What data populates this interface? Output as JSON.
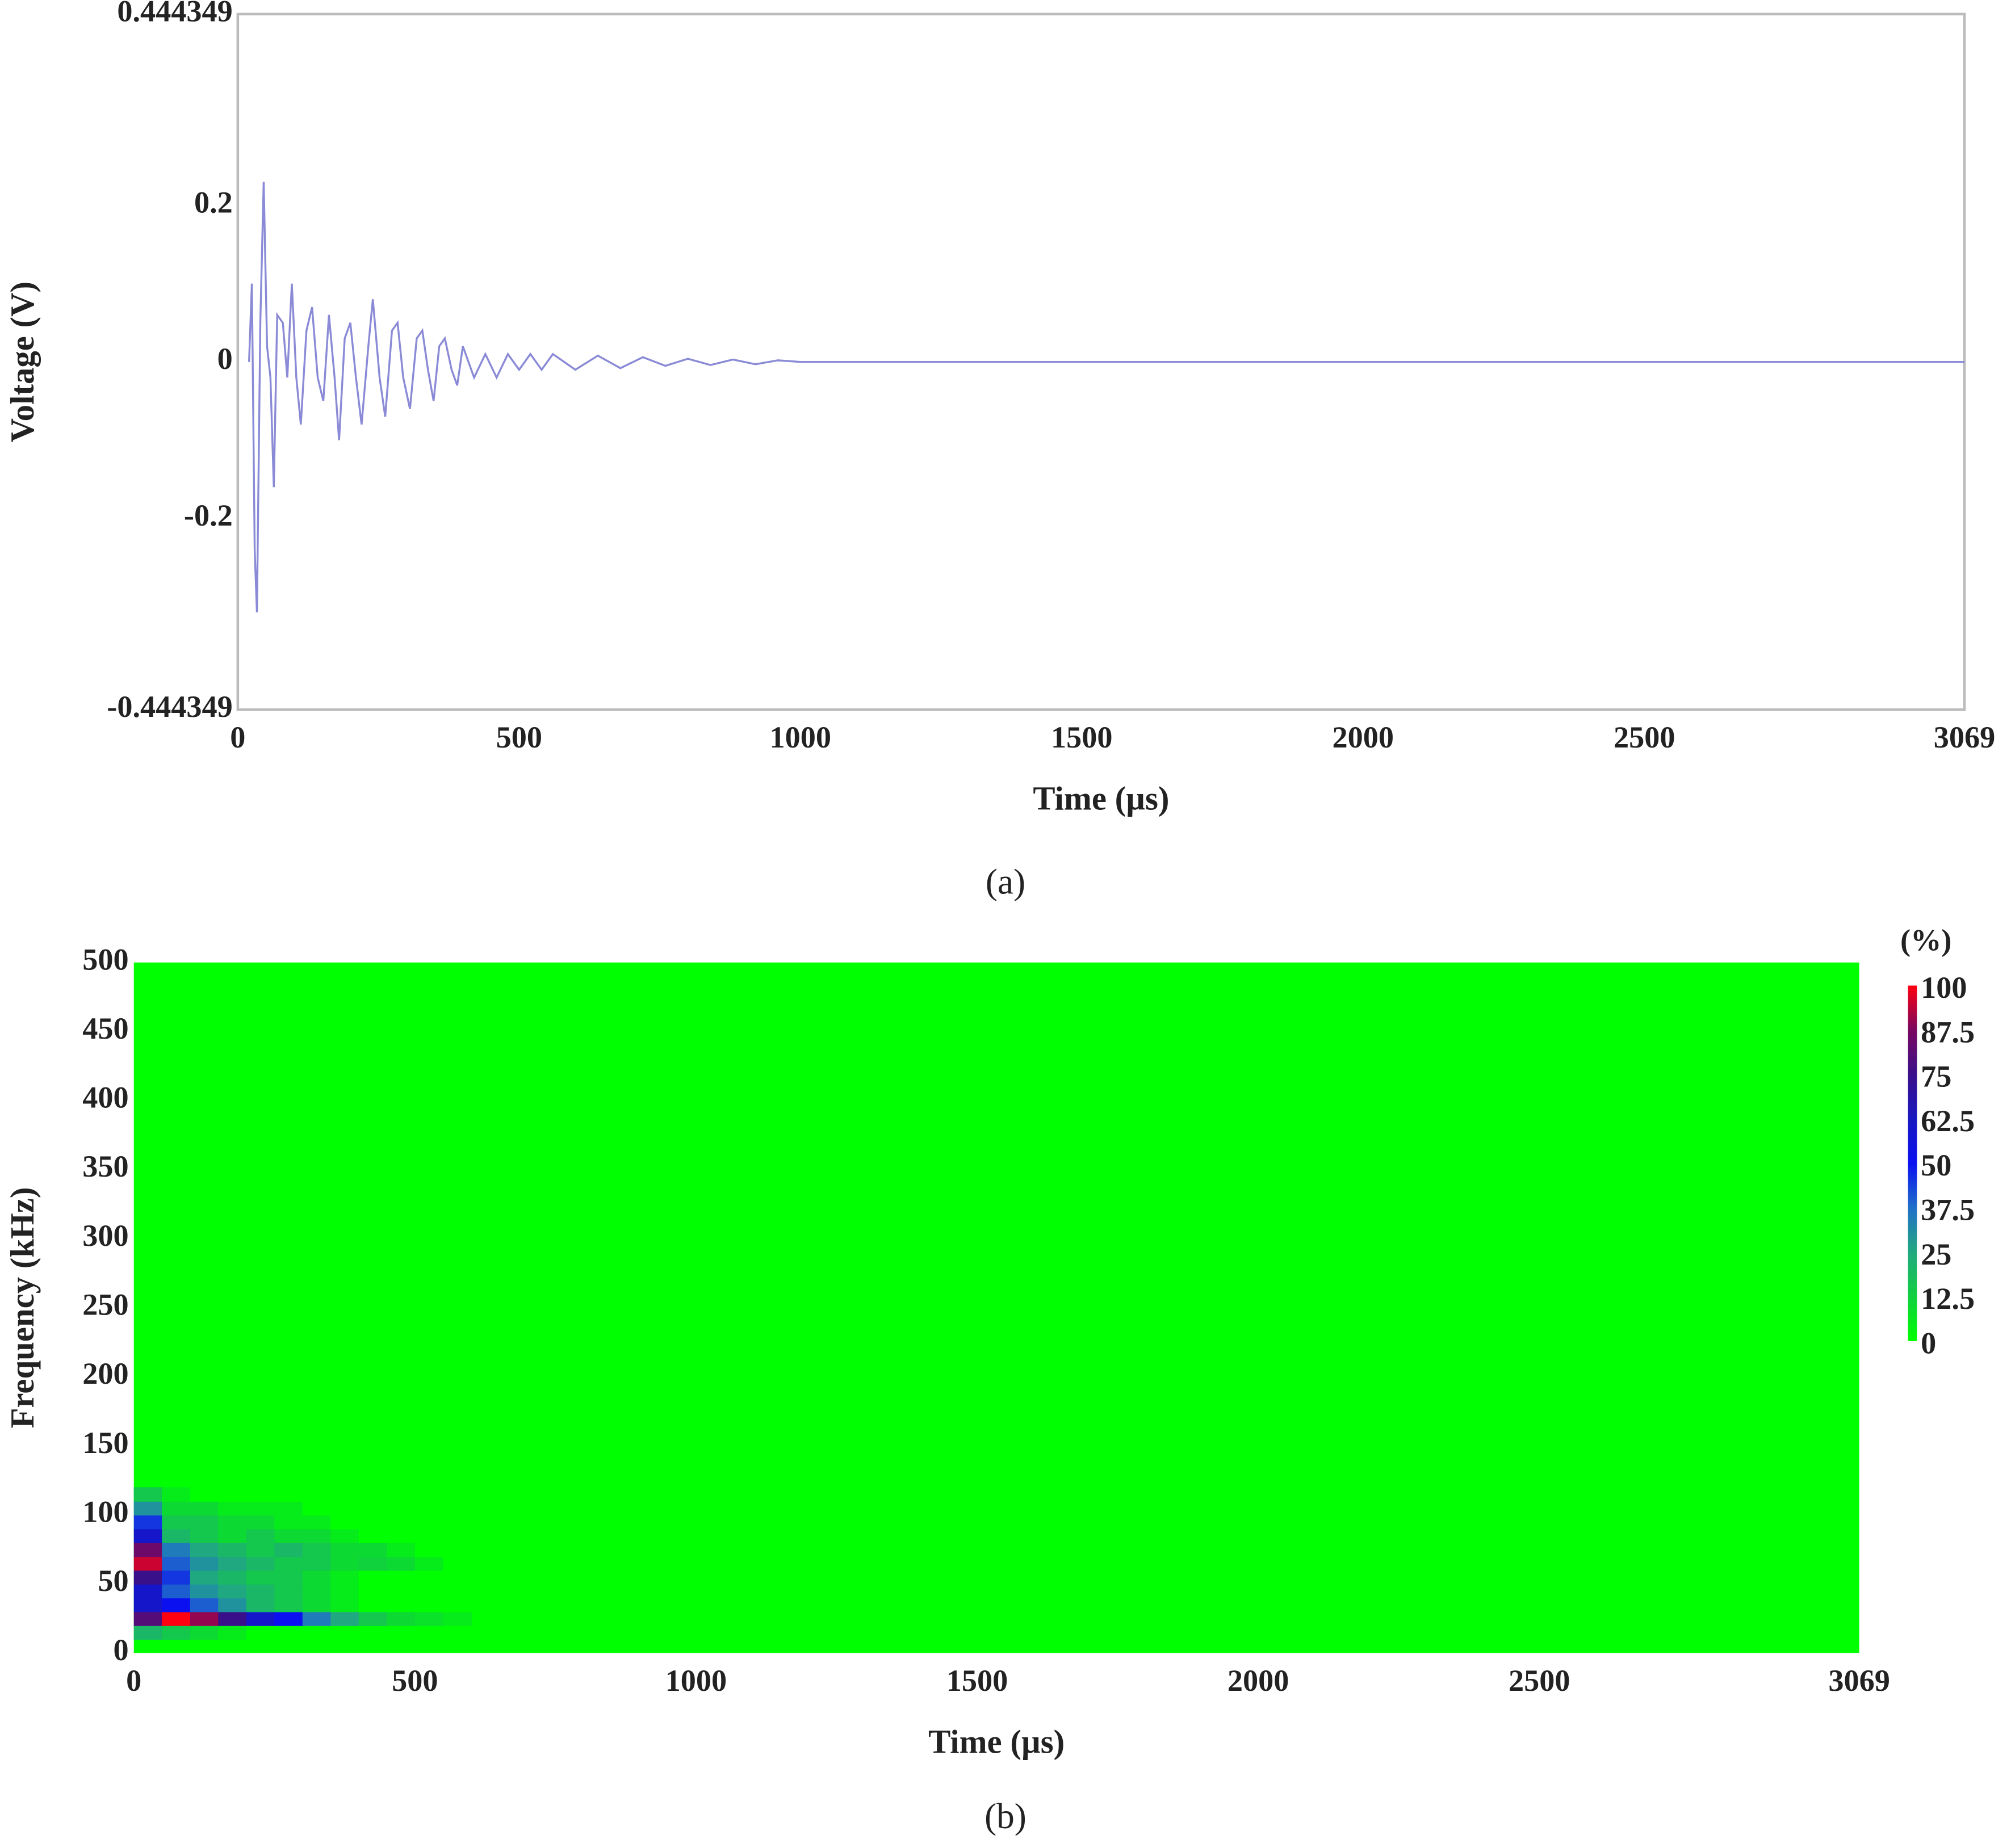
{
  "chart_data": [
    {
      "type": "line",
      "caption": "(a)",
      "x_label": "Time (µs)",
      "y_label": "Voltage (V)",
      "color": "#8a8ad6",
      "x": [
        20,
        25,
        30,
        34,
        40,
        46,
        52,
        58,
        64,
        70,
        80,
        88,
        96,
        104,
        112,
        122,
        132,
        142,
        152,
        162,
        172,
        180,
        190,
        200,
        210,
        220,
        232,
        240,
        252,
        262,
        274,
        284,
        294,
        306,
        318,
        328,
        338,
        348,
        358,
        368,
        380,
        390,
        400,
        420,
        440,
        460,
        480,
        500,
        520,
        540,
        560,
        600,
        640,
        680,
        720,
        760,
        800,
        840,
        880,
        920,
        960,
        1000,
        3069
      ],
      "values": [
        0,
        0.1,
        -0.24,
        -0.32,
        0.05,
        0.23,
        0.02,
        -0.02,
        -0.16,
        0.06,
        0.05,
        -0.02,
        0.1,
        -0.02,
        -0.08,
        0.04,
        0.07,
        -0.02,
        -0.05,
        0.06,
        -0.02,
        -0.1,
        0.03,
        0.05,
        -0.02,
        -0.08,
        0.02,
        0.08,
        -0.02,
        -0.07,
        0.04,
        0.05,
        -0.02,
        -0.06,
        0.03,
        0.04,
        -0.01,
        -0.05,
        0.02,
        0.03,
        -0.01,
        -0.03,
        0.02,
        -0.02,
        0.01,
        -0.02,
        0.01,
        -0.01,
        0.01,
        -0.01,
        0.01,
        -0.01,
        0.008,
        -0.008,
        0.006,
        -0.005,
        0.004,
        -0.004,
        0.003,
        -0.003,
        0.002,
        0,
        0
      ],
      "xlim": [
        0,
        3069
      ],
      "xticks": [
        0,
        500,
        1000,
        1500,
        2000,
        2500,
        3069
      ],
      "ylim": [
        -0.444349,
        0.444349
      ],
      "yticks": [
        -0.444349,
        -0.2,
        0,
        0.2,
        0.444349
      ]
    },
    {
      "type": "heatmap",
      "caption": "(b)",
      "x_label": "Time (µs)",
      "y_label": "Frequency (kHz)",
      "x": [
        0,
        50,
        100,
        150,
        200,
        250,
        300,
        350,
        400,
        450,
        500,
        550,
        600
      ],
      "y": [
        10,
        20,
        30,
        40,
        50,
        60,
        70,
        80,
        90,
        100,
        110,
        120
      ],
      "z": [
        [
          20,
          15,
          10,
          5,
          0,
          0,
          0,
          0,
          0,
          0,
          0,
          0
        ],
        [
          80,
          100,
          90,
          75,
          60,
          50,
          35,
          25,
          15,
          10,
          8,
          5
        ],
        [
          60,
          50,
          40,
          30,
          20,
          15,
          10,
          5,
          0,
          0,
          0,
          0
        ],
        [
          60,
          40,
          30,
          25,
          20,
          15,
          10,
          5,
          0,
          0,
          0,
          0
        ],
        [
          75,
          45,
          25,
          20,
          15,
          15,
          10,
          5,
          0,
          0,
          0,
          0
        ],
        [
          95,
          40,
          30,
          25,
          20,
          15,
          15,
          10,
          12,
          10,
          5,
          0
        ],
        [
          85,
          35,
          25,
          20,
          15,
          20,
          15,
          10,
          10,
          5,
          0,
          0
        ],
        [
          60,
          20,
          15,
          10,
          15,
          10,
          10,
          5,
          0,
          0,
          0,
          0
        ],
        [
          45,
          15,
          15,
          10,
          10,
          5,
          5,
          0,
          0,
          0,
          0,
          0
        ],
        [
          30,
          10,
          10,
          5,
          5,
          5,
          0,
          0,
          0,
          0,
          0,
          0
        ],
        [
          15,
          5,
          0,
          0,
          0,
          0,
          0,
          0,
          0,
          0,
          0,
          0
        ]
      ],
      "xlim": [
        0,
        3069
      ],
      "xticks": [
        0,
        500,
        1000,
        1500,
        2000,
        2500,
        3069
      ],
      "ylim": [
        0,
        500
      ],
      "yticks": [
        0,
        50,
        100,
        150,
        200,
        250,
        300,
        350,
        400,
        450,
        500
      ],
      "colorbar": {
        "title": "(%)",
        "lim": [
          0,
          100
        ],
        "ticks": [
          0,
          12.5,
          25,
          37.5,
          50,
          62.5,
          75,
          87.5,
          100
        ],
        "colors": [
          "#00ff00",
          "#10d040",
          "#20a880",
          "#2070c8",
          "#0a10f0",
          "#1818c0",
          "#3a0f8a",
          "#7a0860",
          "#ff0010"
        ]
      }
    }
  ]
}
